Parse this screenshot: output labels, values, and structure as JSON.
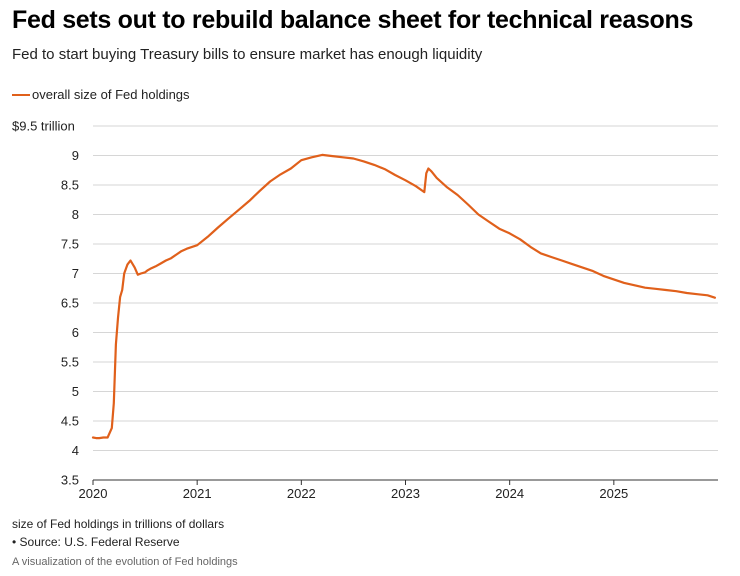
{
  "title": "Fed sets out to rebuild balance sheet for technical reasons",
  "subtitle": "Fed to start buying Treasury bills to ensure market has enough liquidity",
  "footer": {
    "units": "size of Fed holdings in trillions of dollars",
    "source": "• Source: U.S. Federal Reserve",
    "alt": "A visualization of the evolution of Fed holdings"
  },
  "colors": {
    "series": "#e0601b",
    "grid": "#d6d6d6",
    "axis": "#333333"
  },
  "chart_data": {
    "type": "line",
    "title": "Fed sets out to rebuild balance sheet for technical reasons",
    "xlabel": "",
    "ylabel": "size of Fed holdings in trillions of dollars",
    "xlim": [
      2020.0,
      2026.0
    ],
    "ylim": [
      3.5,
      9.5
    ],
    "grid": true,
    "legend": "top-left",
    "y_ticks": [
      {
        "value": 9.5,
        "label": "$9.5 trillion"
      },
      {
        "value": 9,
        "label": "9"
      },
      {
        "value": 8.5,
        "label": "8.5"
      },
      {
        "value": 8,
        "label": "8"
      },
      {
        "value": 7.5,
        "label": "7.5"
      },
      {
        "value": 7,
        "label": "7"
      },
      {
        "value": 6.5,
        "label": "6.5"
      },
      {
        "value": 6,
        "label": "6"
      },
      {
        "value": 5.5,
        "label": "5.5"
      },
      {
        "value": 5,
        "label": "5"
      },
      {
        "value": 4.5,
        "label": "4.5"
      },
      {
        "value": 4,
        "label": "4"
      },
      {
        "value": 3.5,
        "label": "3.5"
      }
    ],
    "x_ticks": [
      {
        "value": 2020,
        "label": "2020"
      },
      {
        "value": 2021,
        "label": "2021"
      },
      {
        "value": 2022,
        "label": "2022"
      },
      {
        "value": 2023,
        "label": "2023"
      },
      {
        "value": 2024,
        "label": "2024"
      },
      {
        "value": 2025,
        "label": "2025"
      }
    ],
    "series": [
      {
        "name": "overall size of Fed holdings",
        "color": "#e0601b",
        "x": [
          2020.0,
          2020.03,
          2020.06,
          2020.1,
          2020.14,
          2020.18,
          2020.2,
          2020.22,
          2020.24,
          2020.26,
          2020.28,
          2020.3,
          2020.33,
          2020.36,
          2020.4,
          2020.43,
          2020.46,
          2020.5,
          2020.52,
          2020.55,
          2020.6,
          2020.65,
          2020.7,
          2020.75,
          2020.8,
          2020.85,
          2020.9,
          2021.0,
          2021.1,
          2021.2,
          2021.3,
          2021.4,
          2021.5,
          2021.6,
          2021.7,
          2021.8,
          2021.9,
          2022.0,
          2022.1,
          2022.2,
          2022.3,
          2022.4,
          2022.5,
          2022.6,
          2022.7,
          2022.8,
          2022.9,
          2023.0,
          2023.1,
          2023.18,
          2023.2,
          2023.22,
          2023.25,
          2023.3,
          2023.4,
          2023.5,
          2023.6,
          2023.7,
          2023.8,
          2023.9,
          2024.0,
          2024.1,
          2024.2,
          2024.3,
          2024.4,
          2024.5,
          2024.6,
          2024.7,
          2024.8,
          2024.9,
          2025.0,
          2025.1,
          2025.2,
          2025.3,
          2025.4,
          2025.5,
          2025.6,
          2025.7,
          2025.8,
          2025.9,
          2025.97
        ],
        "values": [
          4.22,
          4.21,
          4.21,
          4.22,
          4.22,
          4.38,
          4.8,
          5.8,
          6.25,
          6.6,
          6.72,
          7.0,
          7.15,
          7.22,
          7.1,
          6.98,
          7.0,
          7.02,
          7.05,
          7.08,
          7.12,
          7.17,
          7.22,
          7.26,
          7.32,
          7.38,
          7.42,
          7.48,
          7.62,
          7.78,
          7.93,
          8.08,
          8.23,
          8.4,
          8.56,
          8.68,
          8.78,
          8.92,
          8.97,
          9.01,
          8.99,
          8.97,
          8.95,
          8.9,
          8.84,
          8.77,
          8.67,
          8.58,
          8.48,
          8.38,
          8.7,
          8.78,
          8.73,
          8.62,
          8.46,
          8.33,
          8.17,
          8.0,
          7.88,
          7.76,
          7.68,
          7.58,
          7.45,
          7.34,
          7.28,
          7.22,
          7.16,
          7.1,
          7.04,
          6.96,
          6.9,
          6.84,
          6.8,
          6.76,
          6.74,
          6.72,
          6.7,
          6.67,
          6.65,
          6.63,
          6.59
        ]
      }
    ]
  }
}
